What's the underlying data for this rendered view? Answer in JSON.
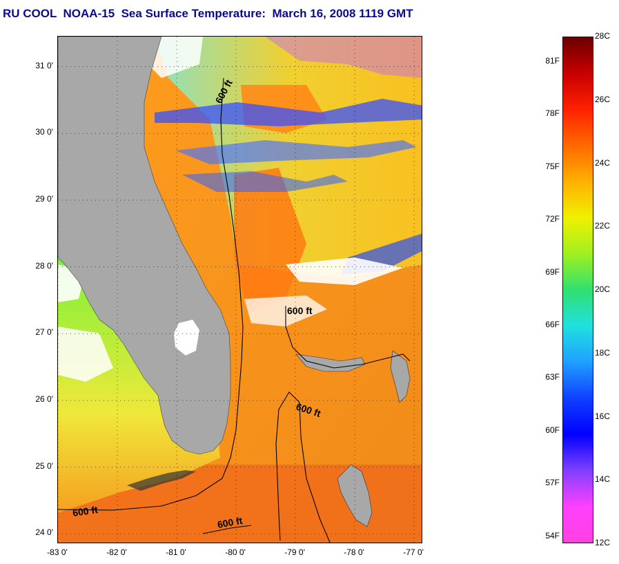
{
  "title": "RU COOL  NOAA-15  Sea Surface Temperature:  March 16, 2008 1119 GMT",
  "map": {
    "lat_range": [
      23.85,
      31.45
    ],
    "lon_range": [
      -83.0,
      -76.85
    ],
    "lat_ticks": [
      "31 0'",
      "30 0'",
      "29 0'",
      "28 0'",
      "27 0'",
      "26 0'",
      "25 0'",
      "24 0'"
    ],
    "lat_values": [
      31,
      30,
      29,
      28,
      27,
      26,
      25,
      24
    ],
    "lon_ticks": [
      "-83 0'",
      "-82 0'",
      "-81 0'",
      "-80 0'",
      "-79 0'",
      "-78 0'",
      "-77 0'"
    ],
    "lon_values": [
      -83,
      -82,
      -81,
      -80,
      -79,
      -78,
      -77
    ],
    "contour_labels": [
      "600 ft",
      "600 ft",
      "600 ft",
      "600 ft",
      "600 ft"
    ],
    "land_color": "#a8a8a8",
    "cloud_color": "#ffffff"
  },
  "colorbar": {
    "min_c": 12,
    "max_c": 28,
    "celsius_labels": [
      "28C",
      "26C",
      "24C",
      "22C",
      "20C",
      "18C",
      "16C",
      "14C",
      "12C"
    ],
    "celsius_values": [
      28,
      26,
      24,
      22,
      20,
      18,
      16,
      14,
      12
    ],
    "fahrenheit_labels": [
      "81F",
      "78F",
      "75F",
      "72F",
      "69F",
      "66F",
      "63F",
      "60F",
      "57F",
      "54F"
    ],
    "fahrenheit_values": [
      81,
      78,
      75,
      72,
      69,
      66,
      63,
      60,
      57,
      54
    ],
    "gradient_colors": [
      "#6b0000",
      "#c80000",
      "#ff2000",
      "#ff6a00",
      "#ffb000",
      "#f0f000",
      "#a0f020",
      "#30e070",
      "#20e0e0",
      "#20a0ff",
      "#1040ff",
      "#0000ff",
      "#8040ff",
      "#ff40ff",
      "#ff40e0"
    ]
  }
}
